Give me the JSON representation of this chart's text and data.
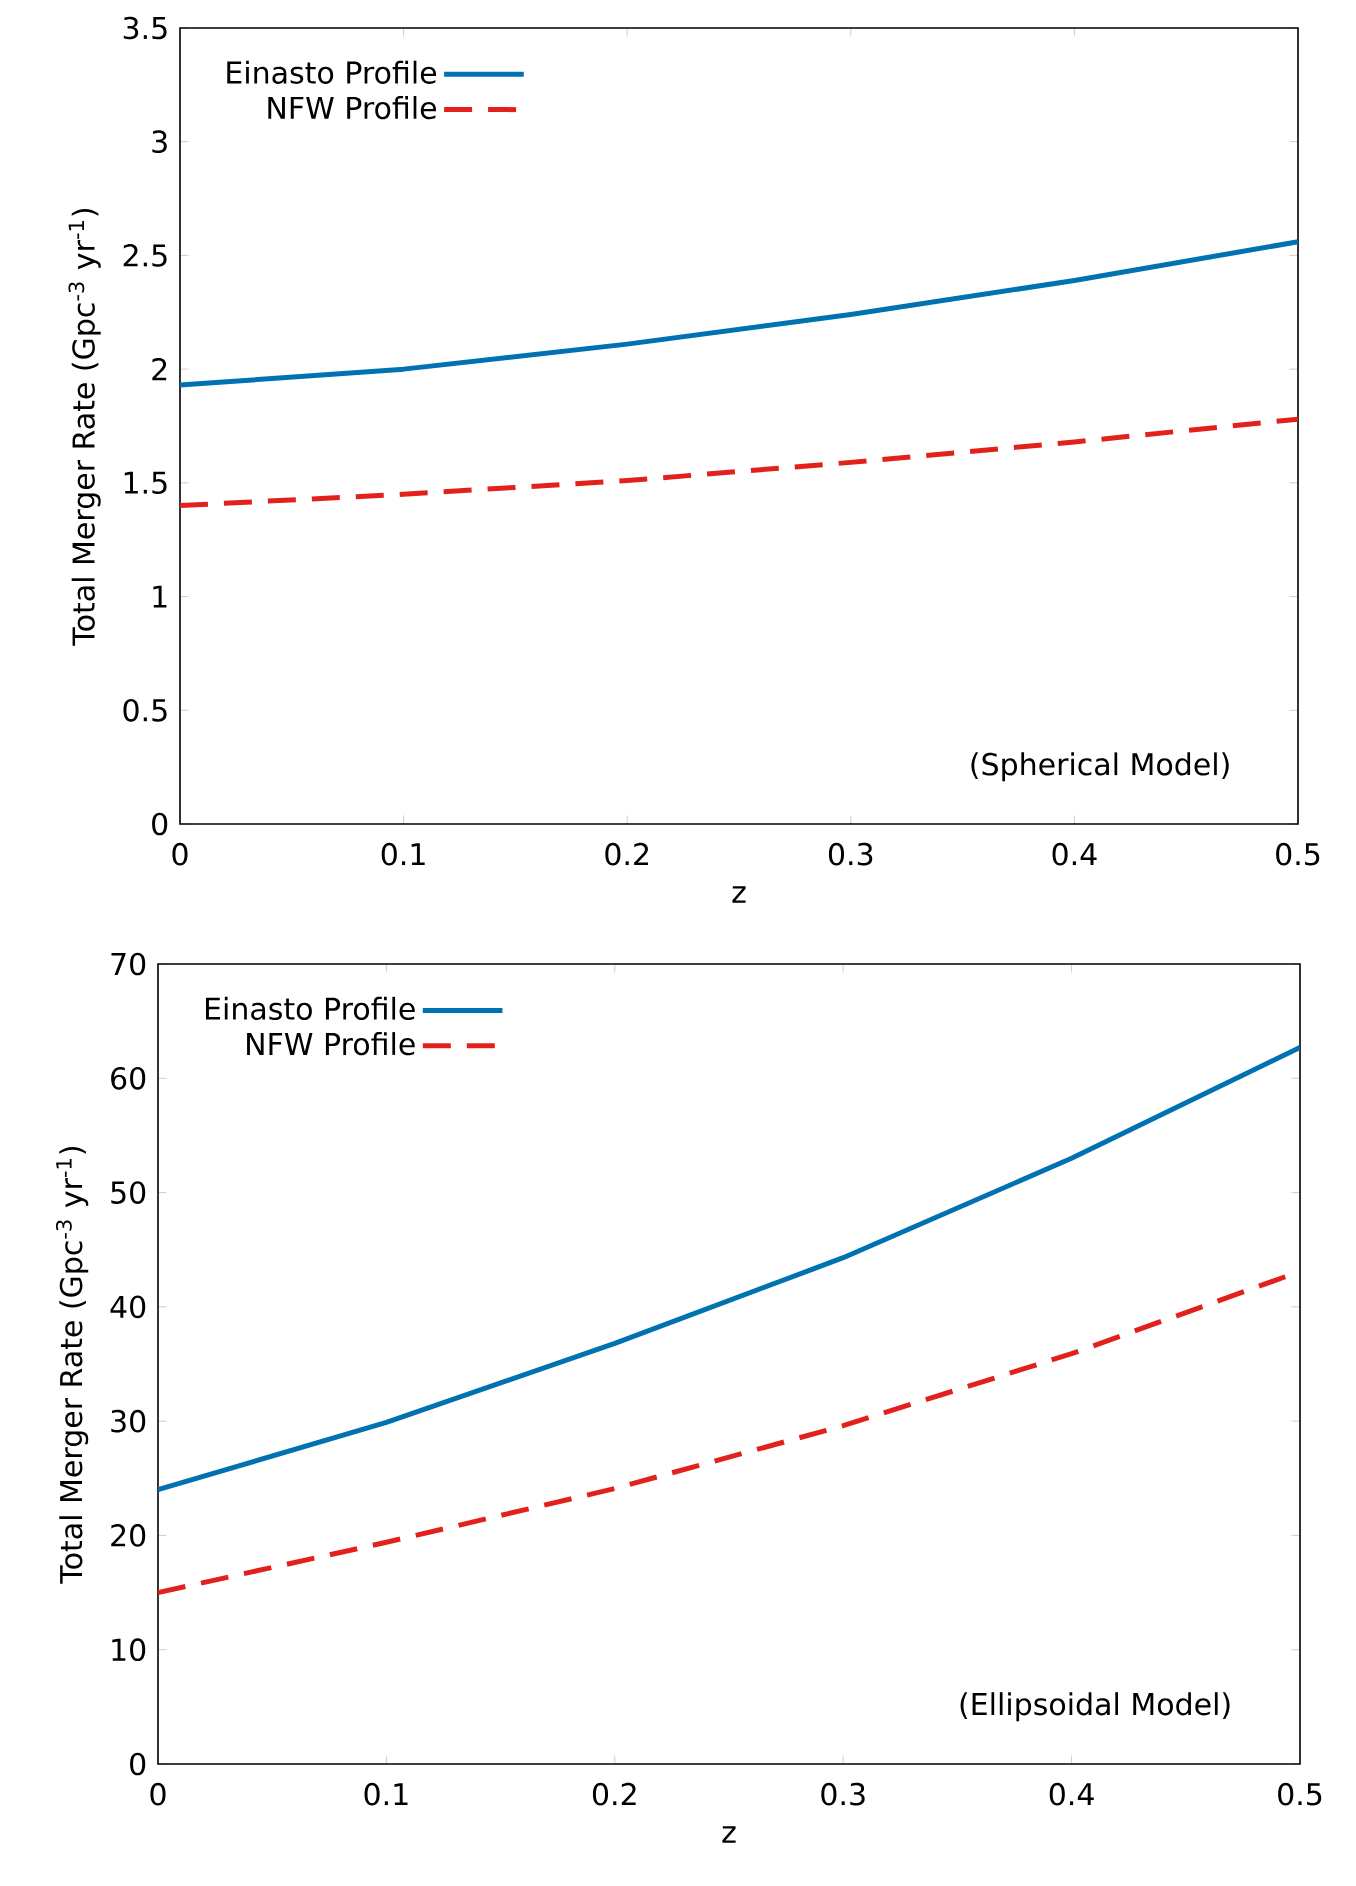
{
  "chart_data": [
    {
      "type": "line",
      "xlabel": "z",
      "ylabel": "Total Merger Rate (Gpc$^{-3}$ yr$^{-1}$)",
      "annotations": [
        "(Spherical Model)"
      ],
      "legend": "top left",
      "x": [
        0,
        0.1,
        0.2,
        0.3,
        0.4,
        0.5
      ],
      "xlim": [
        0,
        0.5
      ],
      "xticks": [
        0,
        0.1,
        0.2,
        0.3,
        0.4,
        0.5
      ],
      "ylim": [
        0,
        3.5
      ],
      "yticks": [
        0,
        0.5,
        1,
        1.5,
        2,
        2.5,
        3,
        3.5
      ],
      "series": [
        {
          "name": "Einasto Profile",
          "color": "#0072b2",
          "line_style": "solid",
          "values": [
            1.93,
            2.0,
            2.11,
            2.24,
            2.39,
            2.56
          ]
        },
        {
          "name": "NFW Profile",
          "color": "#e3211c",
          "line_style": "dashed",
          "values": [
            1.4,
            1.45,
            1.51,
            1.59,
            1.68,
            1.78
          ]
        }
      ]
    },
    {
      "type": "line",
      "xlabel": "z",
      "ylabel": "Total Merger Rate (Gpc$^{-3}$ yr$^{-1}$)",
      "annotations": [
        "(Ellipsoidal Model)"
      ],
      "legend": "top left",
      "x": [
        0,
        0.1,
        0.2,
        0.3,
        0.4,
        0.5
      ],
      "xlim": [
        0,
        0.5
      ],
      "xticks": [
        0,
        0.1,
        0.2,
        0.3,
        0.4,
        0.5
      ],
      "ylim": [
        0,
        70
      ],
      "yticks": [
        0,
        10,
        20,
        30,
        40,
        50,
        60,
        70
      ],
      "series": [
        {
          "name": "Einasto Profile",
          "color": "#0072b2",
          "line_style": "solid",
          "values": [
            24.0,
            29.9,
            36.8,
            44.3,
            53.0,
            62.7
          ]
        },
        {
          "name": "NFW Profile",
          "color": "#e3211c",
          "line_style": "dashed",
          "values": [
            15.0,
            19.4,
            24.1,
            29.6,
            35.9,
            43.1
          ]
        }
      ]
    }
  ]
}
